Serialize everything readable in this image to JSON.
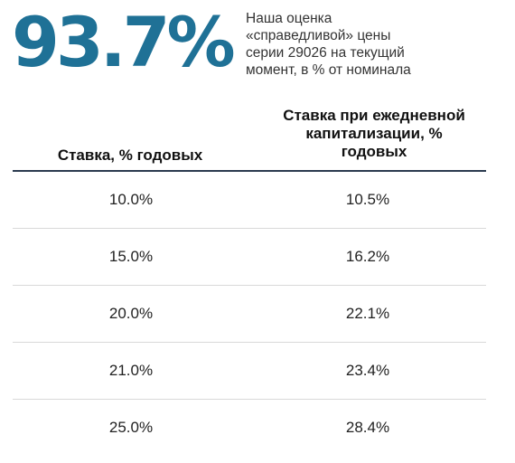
{
  "headline": {
    "value": "93.7%",
    "color": "#1f7196",
    "caption_lines": [
      "Наша оценка",
      "«справедливой» цены",
      "серии 29026 на текущий",
      "момент, в % от номинала"
    ]
  },
  "table": {
    "columns": [
      {
        "lines": [
          "Ставка, % годовых"
        ]
      },
      {
        "lines": [
          "Ставка при ежедневной",
          "капитализации, %",
          "годовых"
        ]
      }
    ],
    "rows": [
      [
        "10.0%",
        "10.5%"
      ],
      [
        "15.0%",
        "16.2%"
      ],
      [
        "20.0%",
        "22.1%"
      ],
      [
        "21.0%",
        "23.4%"
      ],
      [
        "25.0%",
        "28.4%"
      ]
    ]
  }
}
